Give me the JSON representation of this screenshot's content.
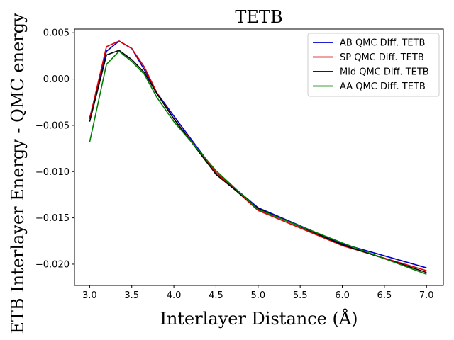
{
  "chart_data": {
    "type": "line",
    "title": "TETB",
    "xlabel": "Interlayer Distance (Å)",
    "ylabel": "ETB Interlayer Energy - QMC energy",
    "xlim": [
      2.82,
      7.2
    ],
    "ylim": [
      -0.0223,
      0.0054
    ],
    "xticks": [
      3.0,
      3.5,
      4.0,
      4.5,
      5.0,
      5.5,
      6.0,
      6.5,
      7.0
    ],
    "xtick_labels": [
      "3.0",
      "3.5",
      "4.0",
      "4.5",
      "5.0",
      "5.5",
      "6.0",
      "6.5",
      "7.0"
    ],
    "yticks": [
      0.005,
      0.0,
      -0.005,
      -0.01,
      -0.015,
      -0.02
    ],
    "ytick_labels": [
      "0.005",
      "0.000",
      "−0.005",
      "−0.010",
      "−0.015",
      "−0.020"
    ],
    "grid": false,
    "legend_position": "top-right",
    "x": [
      3.0,
      3.2,
      3.35,
      3.5,
      3.65,
      3.8,
      4.0,
      4.5,
      5.0,
      6.0,
      7.0
    ],
    "series": [
      {
        "name": "AB QMC Diff. TETB",
        "color": "#0000cc",
        "values": [
          -0.0042,
          0.003,
          0.0041,
          0.0033,
          0.001,
          -0.0015,
          -0.004,
          -0.0101,
          -0.0139,
          -0.0178,
          -0.0204
        ]
      },
      {
        "name": "SP QMC Diff. TETB",
        "color": "#dd0000",
        "values": [
          -0.0043,
          0.0035,
          0.0041,
          0.0033,
          0.0013,
          -0.0015,
          -0.0043,
          -0.0101,
          -0.0142,
          -0.018,
          -0.0207
        ]
      },
      {
        "name": "Mid QMC Diff. TETB",
        "color": "#000000",
        "values": [
          -0.0046,
          0.0026,
          0.0031,
          0.0021,
          0.0007,
          -0.0016,
          -0.0043,
          -0.0103,
          -0.014,
          -0.0179,
          -0.0209
        ]
      },
      {
        "name": "AA QMC Diff. TETB",
        "color": "#008000",
        "values": [
          -0.0068,
          0.0016,
          0.003,
          0.0019,
          0.0005,
          -0.002,
          -0.0046,
          -0.0099,
          -0.0141,
          -0.0177,
          -0.0211
        ]
      }
    ]
  }
}
